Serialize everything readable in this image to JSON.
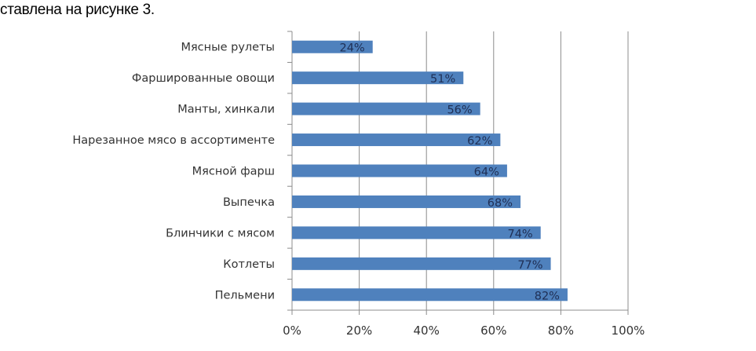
{
  "caption": "ставлена на рисунке 3.",
  "chart_data": {
    "type": "bar",
    "orientation": "horizontal",
    "categories": [
      "Мясные рулеты",
      "Фаршированные овощи",
      "Манты, хинкали",
      "Нарезанное мясо в ассортименте",
      "Мясной фарш",
      "Выпечка",
      "Блинчики с мясом",
      "Котлеты",
      "Пельмени"
    ],
    "values": [
      24,
      51,
      56,
      62,
      64,
      68,
      74,
      77,
      82
    ],
    "data_labels": [
      "24%",
      "51%",
      "56%",
      "62%",
      "64%",
      "68%",
      "74%",
      "77%",
      "82%"
    ],
    "xticks": [
      "0%",
      "20%",
      "40%",
      "60%",
      "80%",
      "100%"
    ],
    "xlim": [
      0,
      100
    ],
    "grid": true,
    "legend": "none",
    "title": "",
    "xlabel": "",
    "ylabel": "",
    "bar_color": "#4f81bd"
  }
}
